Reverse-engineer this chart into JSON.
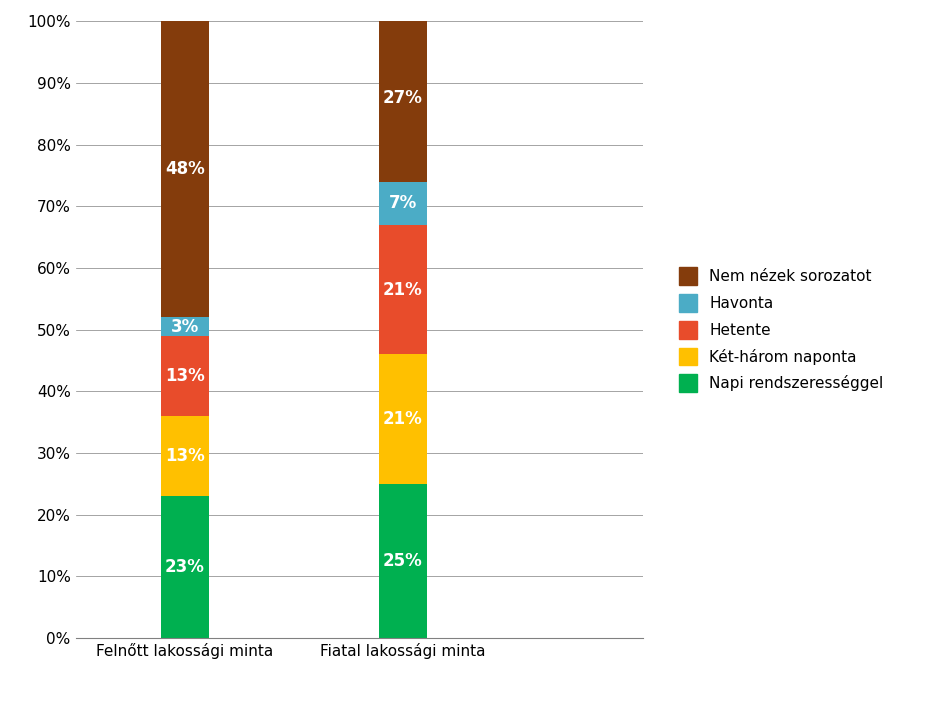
{
  "categories": [
    "Felnőtt lakossági minta",
    "Fiatal lakossági minta"
  ],
  "series": [
    {
      "label": "Napi rendszerességgel",
      "values": [
        23,
        25
      ],
      "color": "#00B050"
    },
    {
      "label": "Két-három naponta",
      "values": [
        13,
        21
      ],
      "color": "#FFC000"
    },
    {
      "label": "Hetente",
      "values": [
        13,
        21
      ],
      "color": "#E84C2B"
    },
    {
      "label": "Havonta",
      "values": [
        3,
        7
      ],
      "color": "#4BACC6"
    },
    {
      "label": "Nem nézek sorozatot",
      "values": [
        48,
        27
      ],
      "color": "#843C0C"
    }
  ],
  "ylim": [
    0,
    100
  ],
  "yticks": [
    0,
    10,
    20,
    30,
    40,
    50,
    60,
    70,
    80,
    90,
    100
  ],
  "yticklabels": [
    "0%",
    "10%",
    "20%",
    "30%",
    "40%",
    "50%",
    "60%",
    "70%",
    "80%",
    "90%",
    "100%"
  ],
  "background_color": "#FFFFFF",
  "bar_width": 0.22,
  "label_fontsize": 12,
  "legend_fontsize": 11,
  "tick_fontsize": 11,
  "xtick_fontsize": 11
}
